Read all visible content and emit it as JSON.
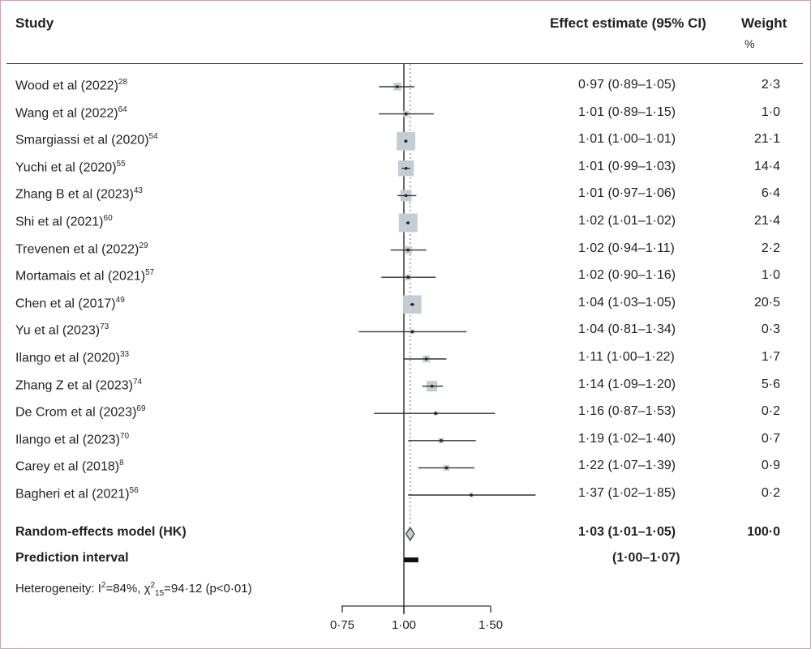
{
  "headers": {
    "study": "Study",
    "effect": "Effect estimate (95% CI)",
    "weight": "Weight",
    "weight_unit": "%"
  },
  "chart_data": {
    "type": "forest",
    "reference_line": 1.0,
    "x_axis": {
      "range": [
        0.75,
        1.5
      ],
      "ticks": [
        0.75,
        1.0,
        1.5
      ],
      "tick_labels": [
        "0·75",
        "1·00",
        "1·50"
      ]
    },
    "studies": [
      {
        "study": "Wood et al (2022)",
        "ref": "28",
        "est": 0.97,
        "lo": 0.89,
        "hi": 1.05,
        "ci_text": "0·97 (0·89–1·05)",
        "weight": 2.3,
        "weight_text": "2·3"
      },
      {
        "study": "Wang et al (2022)",
        "ref": "64",
        "est": 1.01,
        "lo": 0.89,
        "hi": 1.15,
        "ci_text": "1·01 (0·89–1·15)",
        "weight": 1.0,
        "weight_text": "1·0"
      },
      {
        "study": "Smargiassi et al (2020)",
        "ref": "54",
        "est": 1.01,
        "lo": 1.0,
        "hi": 1.01,
        "ci_text": "1·01 (1·00–1·01)",
        "weight": 21.1,
        "weight_text": "21·1"
      },
      {
        "study": "Yuchi et al (2020)",
        "ref": "55",
        "est": 1.01,
        "lo": 0.99,
        "hi": 1.03,
        "ci_text": "1·01 (0·99–1·03)",
        "weight": 14.4,
        "weight_text": "14·4"
      },
      {
        "study": "Zhang B et al (2023)",
        "ref": "43",
        "est": 1.01,
        "lo": 0.97,
        "hi": 1.06,
        "ci_text": "1·01 (0·97–1·06)",
        "weight": 6.4,
        "weight_text": "6·4"
      },
      {
        "study": "Shi et al (2021)",
        "ref": "60",
        "est": 1.02,
        "lo": 1.01,
        "hi": 1.02,
        "ci_text": "1·02 (1·01–1·02)",
        "weight": 21.4,
        "weight_text": "21·4"
      },
      {
        "study": "Trevenen et al (2022)",
        "ref": "29",
        "est": 1.02,
        "lo": 0.94,
        "hi": 1.11,
        "ci_text": "1·02 (0·94–1·11)",
        "weight": 2.2,
        "weight_text": "2·2"
      },
      {
        "study": "Mortamais et al (2021)",
        "ref": "57",
        "est": 1.02,
        "lo": 0.9,
        "hi": 1.16,
        "ci_text": "1·02 (0·90–1·16)",
        "weight": 1.0,
        "weight_text": "1·0"
      },
      {
        "study": "Chen et al (2017)",
        "ref": "49",
        "est": 1.04,
        "lo": 1.03,
        "hi": 1.05,
        "ci_text": "1·04 (1·03–1·05)",
        "weight": 20.5,
        "weight_text": "20·5"
      },
      {
        "study": "Yu et al (2023)",
        "ref": "73",
        "est": 1.04,
        "lo": 0.81,
        "hi": 1.34,
        "ci_text": "1·04 (0·81–1·34)",
        "weight": 0.3,
        "weight_text": "0·3"
      },
      {
        "study": "Ilango et al (2020)",
        "ref": "33",
        "est": 1.11,
        "lo": 1.0,
        "hi": 1.22,
        "ci_text": "1·11 (1·00–1·22)",
        "weight": 1.7,
        "weight_text": "1·7"
      },
      {
        "study": "Zhang Z et al  (2023)",
        "ref": "74",
        "est": 1.14,
        "lo": 1.09,
        "hi": 1.2,
        "ci_text": "1·14 (1·09–1·20)",
        "weight": 5.6,
        "weight_text": "5·6"
      },
      {
        "study": "De Crom et al (2023)",
        "ref": "69",
        "est": 1.16,
        "lo": 0.87,
        "hi": 1.53,
        "ci_text": "1·16 (0·87–1·53)",
        "weight": 0.2,
        "weight_text": "0·2"
      },
      {
        "study": "Ilango et al (2023)",
        "ref": "70",
        "est": 1.19,
        "lo": 1.02,
        "hi": 1.4,
        "ci_text": "1·19 (1·02–1·40)",
        "weight": 0.7,
        "weight_text": "0·7"
      },
      {
        "study": "Carey et al (2018)",
        "ref": "8",
        "est": 1.22,
        "lo": 1.07,
        "hi": 1.39,
        "ci_text": "1·22 (1·07–1·39)",
        "weight": 0.9,
        "weight_text": "0·9"
      },
      {
        "study": "Bagheri et al (2021)",
        "ref": "56",
        "est": 1.37,
        "lo": 1.02,
        "hi": 1.85,
        "ci_text": "1·37 (1·02–1·85)",
        "weight": 0.2,
        "weight_text": "0·2"
      }
    ],
    "pooled": {
      "label": "Random-effects model (HK)",
      "est": 1.03,
      "lo": 1.01,
      "hi": 1.05,
      "ci_text": "1·03 (1·01–1·05)",
      "weight_text": "100·0"
    },
    "prediction": {
      "label": "Prediction interval",
      "lo": 1.0,
      "hi": 1.07,
      "ci_text": "(1·00–1·07)"
    },
    "heterogeneity": {
      "prefix": "Heterogeneity: I",
      "i2_sup": "2",
      "i2_value": "=84%, χ",
      "chi_sup": "2",
      "chi_sub": "15",
      "chi_value": "=94·12 (p<0·01)"
    }
  }
}
